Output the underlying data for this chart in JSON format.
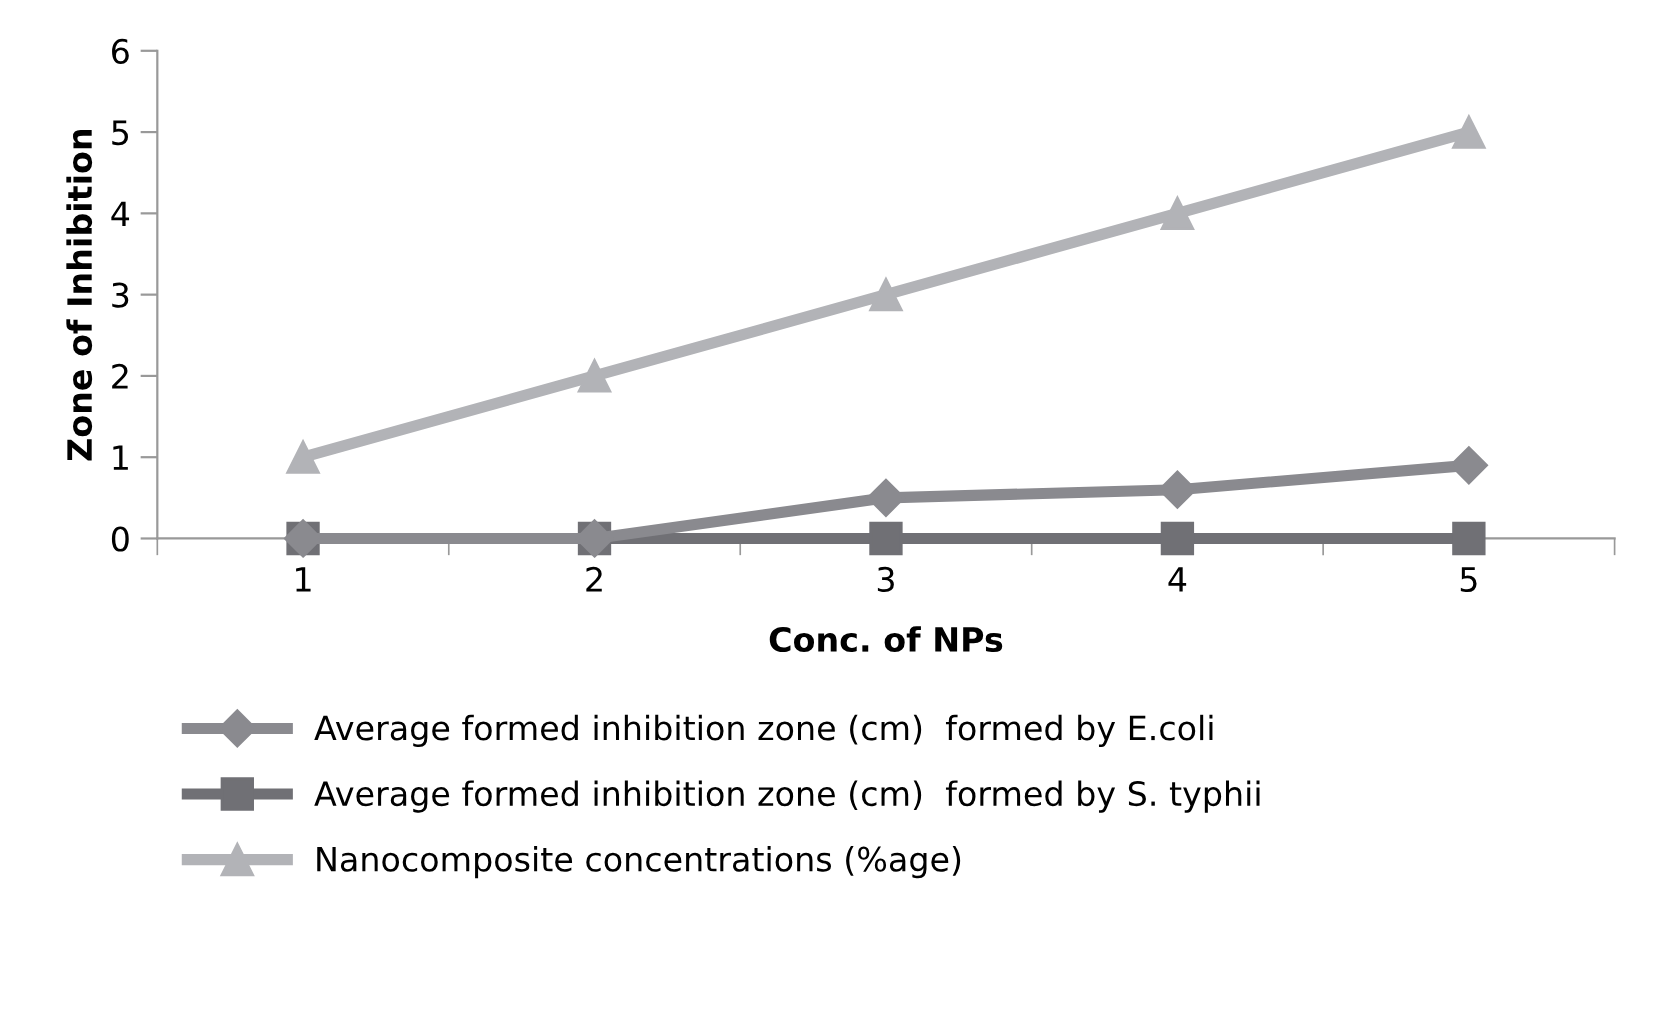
{
  "chart_data": {
    "type": "line",
    "xlabel": "Conc. of NPs",
    "ylabel": "Zone of Inhibition",
    "categories": [
      "1",
      "2",
      "3",
      "4",
      "5"
    ],
    "series": [
      {
        "name": "Average formed inhibition zone (cm)  formed by E.coli",
        "color": "#8a8a8f",
        "marker": "diamond",
        "values": [
          0,
          0,
          0.5,
          0.6,
          0.9
        ]
      },
      {
        "name": "Average formed inhibition zone (cm)  formed by S. typhii",
        "color": "#707075",
        "marker": "square",
        "values": [
          0,
          0,
          0,
          0,
          0
        ]
      },
      {
        "name": "Nanocomposite concentrations (%age)",
        "color": "#b2b3b7",
        "marker": "triangle",
        "values": [
          1,
          2,
          3,
          4,
          5
        ]
      }
    ],
    "ylim": [
      0,
      6
    ],
    "yticks": [
      0,
      1,
      2,
      3,
      4,
      5,
      6
    ],
    "grid": false,
    "legend": "bottom",
    "line_style": "solid"
  }
}
